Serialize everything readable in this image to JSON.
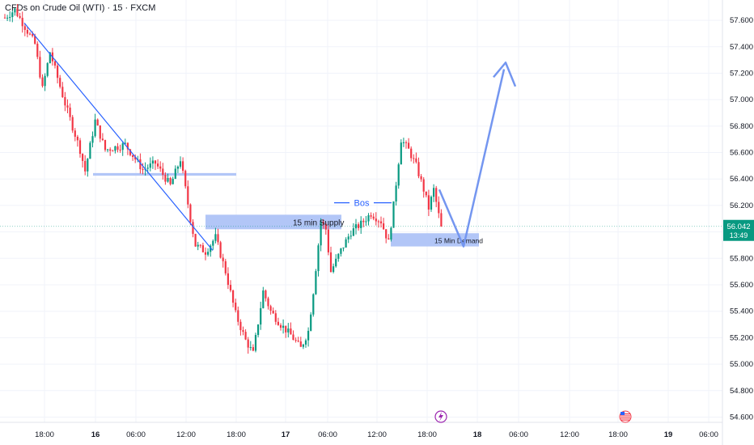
{
  "header": {
    "title": "CFDs on Crude Oil (WTI) · 15 · FXCM"
  },
  "price_tag": {
    "price": "56.042",
    "countdown": "13:49",
    "color": "#089981"
  },
  "colors": {
    "up": "#089981",
    "down": "#f23645",
    "zone": "#b2c6f7",
    "trend": "#2962ff",
    "arrow": "#7496f0",
    "grid": "#f0f3fa"
  },
  "events": {
    "left_icon": "lightning-icon",
    "right_icon": "us-flag-icon"
  },
  "chart_data": {
    "type": "candlestick",
    "title": "CFDs on Crude Oil (WTI) · 15 · FXCM",
    "y_range": [
      54.56,
      57.68
    ],
    "y_ticks": [
      "57.600",
      "57.400",
      "57.200",
      "57.000",
      "56.800",
      "56.600",
      "56.400",
      "56.200",
      "56.000",
      "55.800",
      "55.600",
      "55.400",
      "55.200",
      "55.000",
      "54.800",
      "54.600"
    ],
    "x_ticks": [
      {
        "label": "18:00",
        "bold": false
      },
      {
        "label": "16",
        "bold": true
      },
      {
        "label": "06:00",
        "bold": false
      },
      {
        "label": "12:00",
        "bold": false
      },
      {
        "label": "18:00",
        "bold": false
      },
      {
        "label": "17",
        "bold": true
      },
      {
        "label": "06:00",
        "bold": false
      },
      {
        "label": "12:00",
        "bold": false
      },
      {
        "label": "18:00",
        "bold": false
      },
      {
        "label": "18",
        "bold": true
      },
      {
        "label": "06:00",
        "bold": false
      },
      {
        "label": "12:00",
        "bold": false
      },
      {
        "label": "18:00",
        "bold": false
      },
      {
        "label": "19",
        "bold": true
      },
      {
        "label": "06:00",
        "bold": false
      }
    ],
    "annotations": {
      "supply_label": "15 min Supply",
      "demand_label": "15 Min Demand",
      "bos_label": "Bos"
    },
    "waypoints": [
      [
        0,
        57.62
      ],
      [
        4,
        57.68
      ],
      [
        12,
        57.42
      ],
      [
        15,
        57.08
      ],
      [
        18,
        57.36
      ],
      [
        24,
        56.97
      ],
      [
        30,
        56.62
      ],
      [
        32,
        56.46
      ],
      [
        36,
        56.84
      ],
      [
        40,
        56.62
      ],
      [
        48,
        56.66
      ],
      [
        55,
        56.47
      ],
      [
        60,
        56.52
      ],
      [
        66,
        56.35
      ],
      [
        70,
        56.55
      ],
      [
        74,
        56.1
      ],
      [
        76,
        55.9
      ],
      [
        80,
        55.85
      ],
      [
        84,
        55.96
      ],
      [
        88,
        55.7
      ],
      [
        92,
        55.38
      ],
      [
        96,
        55.18
      ],
      [
        99,
        55.08
      ],
      [
        103,
        55.55
      ],
      [
        106,
        55.4
      ],
      [
        110,
        55.3
      ],
      [
        114,
        55.22
      ],
      [
        118,
        55.12
      ],
      [
        121,
        55.25
      ],
      [
        123,
        55.55
      ],
      [
        126,
        56.08
      ],
      [
        128,
        56.02
      ],
      [
        130,
        55.7
      ],
      [
        134,
        55.86
      ],
      [
        138,
        56.0
      ],
      [
        142,
        56.06
      ],
      [
        146,
        56.14
      ],
      [
        150,
        56.08
      ],
      [
        153,
        55.92
      ],
      [
        155,
        56.2
      ],
      [
        158,
        56.7
      ],
      [
        161,
        56.62
      ],
      [
        164,
        56.5
      ],
      [
        167,
        56.32
      ],
      [
        169,
        56.18
      ],
      [
        171,
        56.32
      ],
      [
        174,
        56.03
      ]
    ],
    "forecast_path": [
      [
        56.03,
        55.89
      ],
      [
        56.03,
        55.89
      ],
      [
        57.23,
        57.23
      ]
    ]
  }
}
